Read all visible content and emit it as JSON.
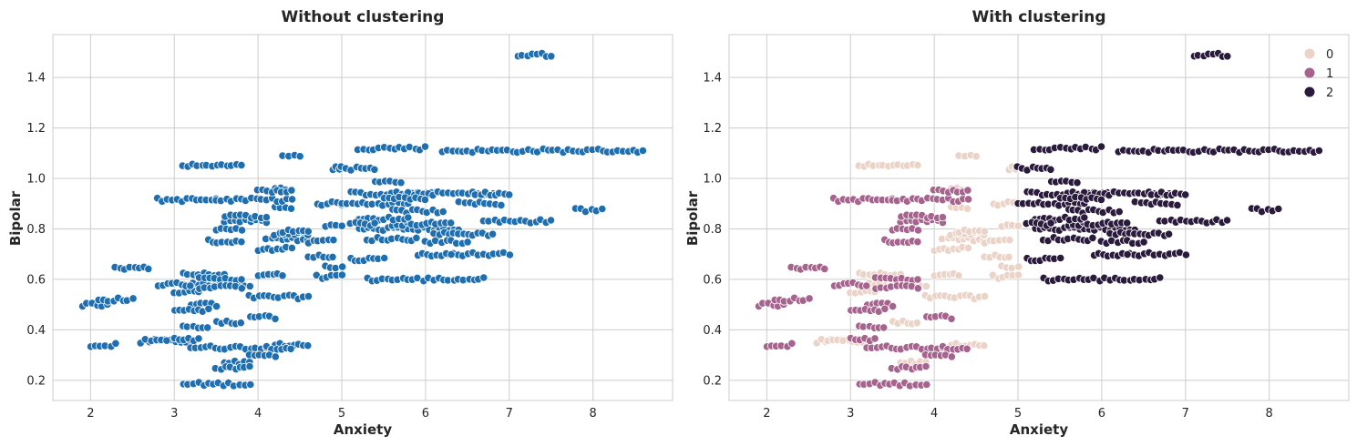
{
  "chart_data": [
    {
      "type": "scatter",
      "title": "Without clustering",
      "xlabel": "Anxiety",
      "ylabel": "Bipolar",
      "xlim": [
        1.55,
        8.95
      ],
      "ylim": [
        0.12,
        1.57
      ],
      "xticks": [
        2,
        3,
        4,
        5,
        6,
        7,
        8
      ],
      "yticks": [
        0.2,
        0.4,
        0.6,
        0.8,
        1.0,
        1.2,
        1.4
      ],
      "xtick_labels": [
        "2",
        "3",
        "4",
        "5",
        "6",
        "7",
        "8"
      ],
      "ytick_labels": [
        "0.2",
        "0.4",
        "0.6",
        "0.8",
        "1.0",
        "1.2",
        "1.4"
      ],
      "grid": true,
      "point_color": "#1f6fb0",
      "point_edge": "#ffffff"
    },
    {
      "type": "scatter",
      "title": "With clustering",
      "xlabel": "Anxiety",
      "ylabel": "Bipolar",
      "xlim": [
        1.55,
        8.95
      ],
      "ylim": [
        0.12,
        1.57
      ],
      "xticks": [
        2,
        3,
        4,
        5,
        6,
        7,
        8
      ],
      "yticks": [
        0.2,
        0.4,
        0.6,
        0.8,
        1.0,
        1.2,
        1.4
      ],
      "xtick_labels": [
        "2",
        "3",
        "4",
        "5",
        "6",
        "7",
        "8"
      ],
      "ytick_labels": [
        "0.2",
        "0.4",
        "0.6",
        "0.8",
        "1.0",
        "1.2",
        "1.4"
      ],
      "grid": true,
      "legend": {
        "placement": "top-right",
        "entries": [
          {
            "label": "0",
            "color": "#ecd3c8"
          },
          {
            "label": "1",
            "color": "#a5638d"
          },
          {
            "label": "2",
            "color": "#2a1b3d"
          }
        ]
      }
    }
  ],
  "clusters": {
    "0": [
      [
        2.7,
        3.2,
        0.355
      ],
      [
        3.1,
        3.6,
        0.62
      ],
      [
        3.1,
        3.9,
        0.58
      ],
      [
        3.0,
        3.3,
        0.55
      ],
      [
        3.1,
        3.8,
        1.05
      ],
      [
        3.9,
        4.6,
        0.53
      ],
      [
        4.2,
        4.6,
        0.34
      ],
      [
        4.1,
        4.6,
        0.76
      ],
      [
        4.2,
        4.6,
        0.78
      ],
      [
        4.2,
        4.4,
        0.88
      ],
      [
        4.2,
        4.4,
        0.96
      ],
      [
        4.3,
        4.5,
        1.09
      ],
      [
        4.6,
        4.9,
        0.69
      ],
      [
        4.7,
        5.0,
        0.61
      ],
      [
        4.8,
        5.0,
        0.81
      ],
      [
        4.6,
        4.9,
        0.75
      ],
      [
        4.9,
        5.0,
        1.04
      ],
      [
        3.5,
        3.8,
        0.43
      ],
      [
        3.6,
        3.9,
        0.27
      ],
      [
        4.0,
        4.4,
        0.72
      ],
      [
        4.3,
        4.6,
        0.79
      ],
      [
        4.8,
        5.0,
        0.65
      ],
      [
        2.6,
        2.9,
        0.355
      ],
      [
        4.0,
        4.3,
        0.62
      ],
      [
        4.7,
        5.0,
        0.9
      ]
    ],
    "1": [
      [
        1.9,
        2.2,
        0.5
      ],
      [
        2.0,
        2.3,
        0.34
      ],
      [
        2.3,
        2.7,
        0.645
      ],
      [
        2.1,
        2.5,
        0.52
      ],
      [
        2.8,
        3.5,
        0.915
      ],
      [
        3.1,
        3.9,
        0.185
      ],
      [
        3.2,
        3.6,
        0.33
      ],
      [
        3.6,
        4.1,
        0.33
      ],
      [
        4.1,
        4.4,
        0.33
      ],
      [
        3.3,
        3.8,
        0.6
      ],
      [
        3.3,
        3.8,
        0.57
      ],
      [
        3.2,
        3.5,
        0.5
      ],
      [
        3.4,
        3.8,
        0.75
      ],
      [
        3.5,
        4.4,
        0.915
      ],
      [
        3.6,
        4.1,
        0.83
      ],
      [
        3.9,
        4.2,
        0.45
      ],
      [
        3.9,
        4.2,
        0.3
      ],
      [
        3.1,
        3.4,
        0.41
      ],
      [
        2.8,
        3.2,
        0.58
      ],
      [
        3.0,
        3.4,
        0.48
      ],
      [
        3.6,
        4.1,
        0.85
      ],
      [
        4.0,
        4.4,
        0.95
      ],
      [
        3.5,
        3.8,
        0.8
      ],
      [
        3.0,
        3.3,
        0.36
      ],
      [
        3.5,
        3.9,
        0.25
      ]
    ],
    "2": [
      [
        7.1,
        7.5,
        1.49
      ],
      [
        5.2,
        6.0,
        1.12
      ],
      [
        6.2,
        8.6,
        1.11
      ],
      [
        7.8,
        8.1,
        0.875
      ],
      [
        5.1,
        6.2,
        0.94
      ],
      [
        5.8,
        6.8,
        0.94
      ],
      [
        6.7,
        7.5,
        0.83
      ],
      [
        5.0,
        5.8,
        0.9
      ],
      [
        5.2,
        6.4,
        0.8
      ],
      [
        6.1,
        6.8,
        0.78
      ],
      [
        5.3,
        6.7,
        0.6
      ],
      [
        5.1,
        5.5,
        0.68
      ],
      [
        6.2,
        7.0,
        0.7
      ],
      [
        5.6,
        6.3,
        0.82
      ],
      [
        5.3,
        5.9,
        0.76
      ],
      [
        6.0,
        6.5,
        0.75
      ],
      [
        5.0,
        5.4,
        1.04
      ],
      [
        5.4,
        5.7,
        0.99
      ],
      [
        5.6,
        6.2,
        0.87
      ],
      [
        6.4,
        6.9,
        0.9
      ],
      [
        5.2,
        5.8,
        0.84
      ],
      [
        6.6,
        7.0,
        0.94
      ],
      [
        5.9,
        6.3,
        0.7
      ],
      [
        5.1,
        5.4,
        0.82
      ],
      [
        5.5,
        6.0,
        0.92
      ]
    ]
  }
}
